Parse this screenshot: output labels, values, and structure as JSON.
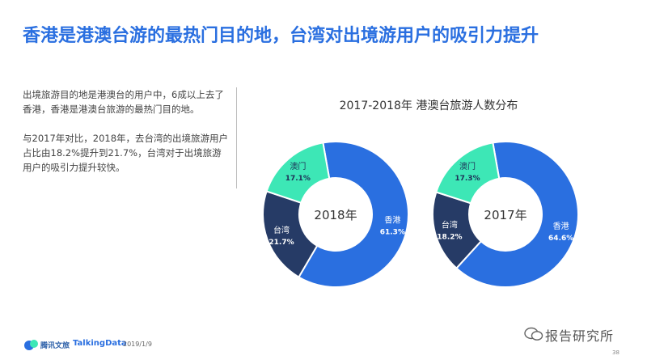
{
  "header": {
    "title": "香港是港澳台游的最热门目的地，台湾对出境游用户的吸引力提升"
  },
  "body": {
    "paragraph1": "出境旅游目的地是港澳台的用户中，6成以上去了香港，香港是港澳台旅游的最热门目的地。",
    "paragraph2": "与2017年对比，2018年，去台湾的出境旅游用户占比由18.2%提升到21.7%，台湾对于出境旅游用户的吸引力提升较快。"
  },
  "chart_data": [
    {
      "type": "pie",
      "title": "2017-2018年 港澳台旅游人数分布",
      "center_label": "2018年",
      "categories": [
        "香港",
        "台湾",
        "澳门"
      ],
      "values": [
        61.3,
        21.7,
        17.1
      ],
      "value_labels": [
        "61.3%",
        "21.7%",
        "17.1%"
      ],
      "colors": [
        "#2a6fe0",
        "#263b66",
        "#3de7b6"
      ]
    },
    {
      "type": "pie",
      "title": "2017-2018年 港澳台旅游人数分布",
      "center_label": "2017年",
      "categories": [
        "香港",
        "台湾",
        "澳门"
      ],
      "values": [
        64.6,
        18.2,
        17.3
      ],
      "value_labels": [
        "64.6%",
        "18.2%",
        "17.3%"
      ],
      "colors": [
        "#2a6fe0",
        "#263b66",
        "#3de7b6"
      ]
    }
  ],
  "footer": {
    "logo1_text": "腾讯文旅",
    "logo2_text": "TalkingData",
    "date": "2019/1/9",
    "watermark": "报告研究所",
    "page_number": "38"
  }
}
